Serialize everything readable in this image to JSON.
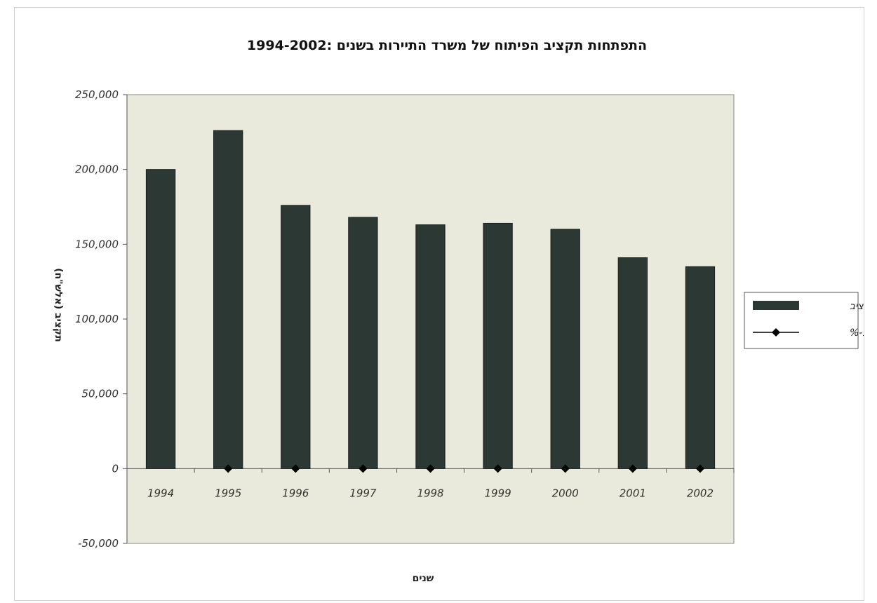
{
  "chart_data": {
    "type": "bar",
    "title": "התפתחות תקציב הפיתוח של משרד התיירות בשנים :1994-2002",
    "xlabel": "שנים",
    "ylabel": "תקציב (אלש\"ח)",
    "categories": [
      "1994",
      "1995",
      "1996",
      "1997",
      "1998",
      "1999",
      "2000",
      "2001",
      "2002"
    ],
    "series": [
      {
        "name": "תקציב",
        "kind": "bar",
        "color": "#2c3833",
        "values": [
          200000,
          226000,
          176000,
          168000,
          163000,
          164000,
          160000,
          141000,
          135000
        ]
      },
      {
        "name": "שינוי ב-%",
        "kind": "line-marker",
        "color": "#000000",
        "values": [
          null,
          0,
          0,
          0,
          0,
          0,
          0,
          0,
          0
        ]
      }
    ],
    "ylim": [
      -50000,
      250000
    ],
    "yticks": [
      -50000,
      0,
      50000,
      100000,
      150000,
      200000,
      250000
    ],
    "ytick_labels": [
      "-50,000",
      "0",
      "50,000",
      "100,000",
      "150,000",
      "200,000",
      "250,000"
    ],
    "grid": false,
    "plot_background": "#e9e9dc",
    "legend_position": "right"
  }
}
